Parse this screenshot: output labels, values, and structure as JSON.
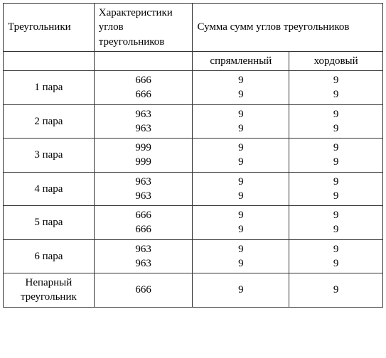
{
  "headers": {
    "triangles": "Треугольники",
    "characteristics": "Характеристики углов треугольников",
    "sumsums": "Сумма сумм углов треугольников",
    "straightened": "спрямленный",
    "chord": "хордовый"
  },
  "rows": {
    "r0": {
      "label": "1 пара",
      "char_a": "666",
      "char_b": "666",
      "s1_a": "9",
      "s1_b": "9",
      "s2_a": "9",
      "s2_b": "9"
    },
    "r1": {
      "label": "2 пара",
      "char_a": "963",
      "char_b": "963",
      "s1_a": "9",
      "s1_b": "9",
      "s2_a": "9",
      "s2_b": "9"
    },
    "r2": {
      "label": "3 пара",
      "char_a": "999",
      "char_b": "999",
      "s1_a": "9",
      "s1_b": "9",
      "s2_a": "9",
      "s2_b": "9"
    },
    "r3": {
      "label": "4 пара",
      "char_a": "963",
      "char_b": "963",
      "s1_a": "9",
      "s1_b": "9",
      "s2_a": "9",
      "s2_b": "9"
    },
    "r4": {
      "label": "5 пара",
      "char_a": "666",
      "char_b": "666",
      "s1_a": "9",
      "s1_b": "9",
      "s2_a": "9",
      "s2_b": "9"
    },
    "r5": {
      "label": "6 пара",
      "char_a": "963",
      "char_b": "963",
      "s1_a": "9",
      "s1_b": "9",
      "s2_a": "9",
      "s2_b": "9"
    },
    "r6": {
      "label": "Непарный треугольник",
      "char": "666",
      "s1": "9",
      "s2": "9"
    }
  },
  "style": {
    "border_color": "#333333",
    "background": "#ffffff",
    "font_family": "Times New Roman",
    "font_size_pt": 11
  }
}
